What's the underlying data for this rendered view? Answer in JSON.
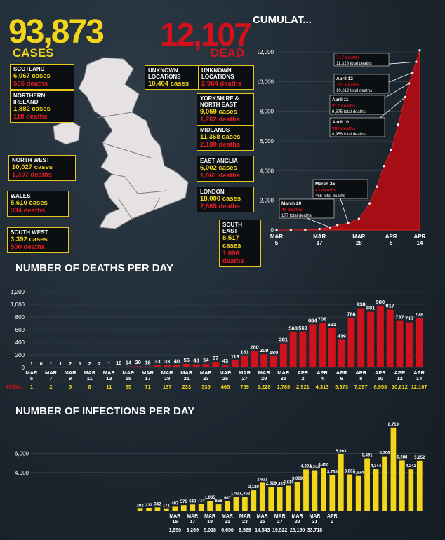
{
  "header": {
    "cases_total": "93,873",
    "cases_label": "CASES",
    "dead_total": "12,107",
    "dead_label": "DEAD",
    "cumulative_title": "CUMULAT..."
  },
  "colors": {
    "yellow": "#f3d51a",
    "red": "#d1111b",
    "background": "#1d2730"
  },
  "regions": [
    {
      "id": "scotland",
      "name": "SCOTLAND",
      "cases": "6,067 cases",
      "deaths": "566 deaths"
    },
    {
      "id": "northern-ireland",
      "name": "NORTHERN IRELAND",
      "cases": "1,882 cases",
      "deaths": "118 deaths"
    },
    {
      "id": "north-west",
      "name": "NORTH WEST",
      "cases": "10,027 cases",
      "deaths": "1,307 deaths"
    },
    {
      "id": "wales",
      "name": "WALES",
      "cases": "5,610 cases",
      "deaths": "384 deaths"
    },
    {
      "id": "south-west",
      "name": "SOUTH WEST",
      "cases": "3,392 cases",
      "deaths": "500 deaths"
    },
    {
      "id": "unknown-cases",
      "name": "UNKNOWN LOCATIONS",
      "cases": "10,404 cases",
      "deaths": ""
    },
    {
      "id": "unknown-deaths",
      "name": "UNKNOWN LOCATIONS",
      "cases": "",
      "deaths": "2,964 deaths"
    },
    {
      "id": "yorkshire",
      "name": "YORKSHIRE & NORTH EAST",
      "cases": "9,059 cases",
      "deaths": "1,262 deaths"
    },
    {
      "id": "midlands",
      "name": "MIDLANDS",
      "cases": "11,368 cases",
      "deaths": "2,180 deaths"
    },
    {
      "id": "east-anglia",
      "name": "EAST ANGLIA",
      "cases": "6,002 cases",
      "deaths": "1,061 deaths"
    },
    {
      "id": "london",
      "name": "LONDON",
      "cases": "18,000 cases",
      "deaths": "2,865 deaths"
    },
    {
      "id": "south-east",
      "name": "SOUTH EAST",
      "cases": "8,517 cases",
      "deaths": "1,086 deaths"
    }
  ],
  "chart_data": [
    {
      "type": "area",
      "title": "CUMULAT...",
      "x_ticks": [
        "MAR 5",
        "MAR 17",
        "MAR 28",
        "APR 6",
        "APR 14"
      ],
      "ylim": [
        0,
        12000
      ],
      "y_ticks": [
        "0",
        "2,000",
        "4,000",
        "6,000",
        "8,000",
        "10,000",
        "12,000"
      ],
      "x": [
        "Mar 5",
        "Mar 9",
        "Mar 13",
        "Mar 17",
        "Mar 20",
        "Mar 22",
        "Mar 25",
        "Mar 28",
        "Mar 31",
        "Apr 2",
        "Apr 4",
        "Apr 6",
        "Apr 8",
        "Apr 10",
        "Apr 11",
        "Apr 12",
        "Apr 13",
        "Apr 14"
      ],
      "values": [
        1,
        5,
        11,
        71,
        177,
        335,
        465,
        759,
        1789,
        2921,
        4313,
        5373,
        7097,
        8958,
        9875,
        10612,
        11329,
        12107
      ],
      "annotations": [
        {
          "x": "Mar 20",
          "label": "March 20",
          "deaths": "40 deaths",
          "total": "177 total deaths"
        },
        {
          "x": "Mar 25",
          "label": "March 25",
          "deaths": "43 deaths",
          "total": "465 total deaths"
        },
        {
          "x": "Apr 10",
          "label": "April 10",
          "deaths": "980 deaths",
          "total": "8,958 total deaths"
        },
        {
          "x": "Apr 11",
          "label": "April 11",
          "deaths": "917 deaths",
          "total": "9,875 total deaths"
        },
        {
          "x": "Apr 12",
          "label": "April 12",
          "deaths": "737 deaths",
          "total": "10,612 total deaths"
        },
        {
          "x": "Apr 13",
          "label": "",
          "deaths": "717 deaths",
          "total": "11,329 total deaths"
        }
      ]
    },
    {
      "type": "bar",
      "title": "NUMBER OF DEATHS PER DAY",
      "ylim": [
        0,
        1200
      ],
      "y_ticks": [
        "0",
        "200",
        "400",
        "600",
        "800",
        "1,000",
        "1,200"
      ],
      "values": [
        1,
        0,
        1,
        1,
        2,
        1,
        2,
        2,
        1,
        10,
        14,
        20,
        16,
        33,
        33,
        40,
        56,
        48,
        54,
        87,
        43,
        113,
        181,
        260,
        209,
        180,
        381,
        563,
        569,
        684,
        708,
        621,
        439,
        786,
        938,
        881,
        980,
        917,
        737,
        717,
        778
      ],
      "x_ticks": [
        "MAR 5",
        "MAR 7",
        "MAR 9",
        "MAR 11",
        "MAR 13",
        "MAR 15",
        "MAR 17",
        "MAR 19",
        "MAR 21",
        "MAR 23",
        "MAR 25",
        "MAR 27",
        "MAR 29",
        "MAR 31",
        "APR 2",
        "APR 4",
        "APR 6",
        "APR 8",
        "APR 10",
        "APR 12",
        "APR 14"
      ],
      "total_label": "TOTAL",
      "totals": [
        "1",
        "2",
        "5",
        "8",
        "11",
        "35",
        "71",
        "137",
        "233",
        "335",
        "465",
        "759",
        "1,228",
        "1,789",
        "2,921",
        "4,313",
        "5,373",
        "7,097",
        "8,958",
        "10,612",
        "12,107"
      ]
    },
    {
      "type": "bar",
      "title": "NUMBER OF INFECTIONS PER DAY",
      "ylim": [
        0,
        9000
      ],
      "y_ticks": [
        "4,000",
        "6,000"
      ],
      "values": [
        0,
        0,
        0,
        0,
        0,
        0,
        0,
        0,
        0,
        0,
        0,
        0,
        202,
        232,
        342,
        171,
        407,
        576,
        643,
        714,
        1035,
        656,
        967,
        1427,
        1452,
        2129,
        2921,
        2510,
        2433,
        2619,
        3009,
        4324,
        4244,
        4450,
        3735,
        5903,
        3802,
        3634,
        5491,
        4344,
        5706,
        8719,
        5288,
        4342,
        5252
      ],
      "value_labels": [
        "",
        "",
        "",
        "",
        "",
        "",
        "",
        "",
        "",
        "",
        "",
        "",
        "202",
        "232",
        "342",
        "171",
        "407",
        "576",
        "643",
        "714",
        "1,035",
        "656",
        "967",
        "1,427",
        "1,452",
        "2,129",
        "2,921",
        "2,510",
        "2,433",
        "2,619",
        "3,009",
        "4,324",
        "4,244",
        "4,450",
        "3,735",
        "5,903",
        "3,802",
        "3,634",
        "5,491",
        "4,344",
        "5,706",
        "8,719",
        "5,288",
        "4,342",
        "5,252"
      ],
      "x_ticks": [
        "MAR 15",
        "MAR 17",
        "MAR 19",
        "MAR 21",
        "MAR 23",
        "MAR 25",
        "MAR 27",
        "MAR 29",
        "MAR 31",
        "APR 2"
      ],
      "totals": [
        "1,950",
        "3,269",
        "5,018",
        "6,650",
        "9,529",
        "14,543",
        "19,522",
        "25,150",
        "33,718"
      ]
    }
  ]
}
